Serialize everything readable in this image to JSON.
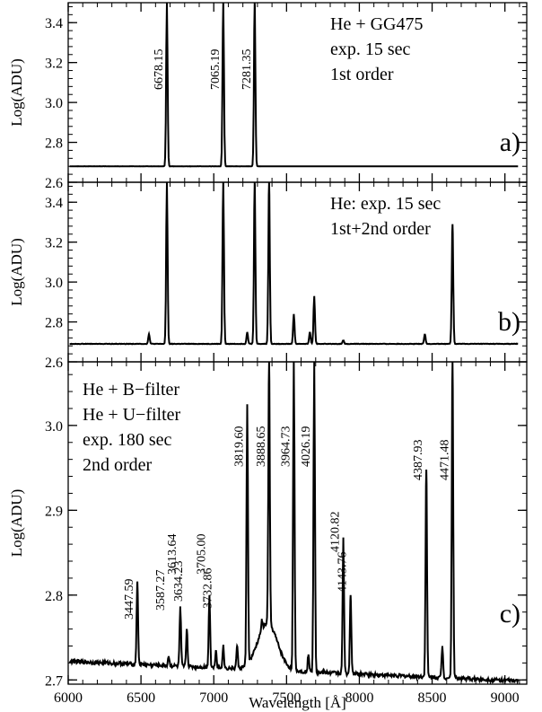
{
  "chart_data": [
    {
      "panel": "a)",
      "type": "line",
      "annotation_lines": [
        "He + GG475",
        "exp. 15 sec",
        "1st order"
      ],
      "ylabel": "Log(ADU)",
      "xlim": [
        6000,
        9150
      ],
      "ylim": [
        2.6,
        3.5
      ],
      "yticks": [
        "2.6",
        "2.8",
        "3.0",
        "3.2",
        "3.4"
      ],
      "baseline": 2.68,
      "peaks": [
        {
          "x": 6678,
          "y": 3.5,
          "label": "6678.15"
        },
        {
          "x": 7065,
          "y": 3.5,
          "label": "7065.19"
        },
        {
          "x": 7281,
          "y": 3.5,
          "label": "7281.35"
        }
      ]
    },
    {
      "panel": "b)",
      "type": "line",
      "annotation_lines": [
        "He:  exp. 15 sec",
        "1st+2nd order"
      ],
      "ylabel": "Log(ADU)",
      "xlim": [
        6000,
        9150
      ],
      "ylim": [
        2.6,
        3.5
      ],
      "yticks": [
        "2.6",
        "2.8",
        "3.0",
        "3.2",
        "3.4"
      ],
      "baseline": 2.69,
      "peaks": [
        {
          "x": 6555,
          "y": 2.74
        },
        {
          "x": 6678,
          "y": 3.5
        },
        {
          "x": 7065,
          "y": 3.5
        },
        {
          "x": 7230,
          "y": 2.75
        },
        {
          "x": 7281,
          "y": 3.5
        },
        {
          "x": 7380,
          "y": 3.5
        },
        {
          "x": 7550,
          "y": 2.84
        },
        {
          "x": 7660,
          "y": 2.75
        },
        {
          "x": 7690,
          "y": 2.93
        },
        {
          "x": 7890,
          "y": 2.71
        },
        {
          "x": 8450,
          "y": 2.74
        },
        {
          "x": 8640,
          "y": 3.29
        }
      ]
    },
    {
      "panel": "c)",
      "type": "line",
      "annotation_lines": [
        "He + B−filter",
        "He + U−filter",
        "exp. 180 sec",
        "2nd order"
      ],
      "ylabel": "Log(ADU)",
      "xlabel": "Wavelength [Å]",
      "xlim": [
        6000,
        9150
      ],
      "ylim": [
        2.695,
        3.075
      ],
      "yticks": [
        "2.7",
        "2.8",
        "2.9",
        "3.0"
      ],
      "xticks": [
        "6000",
        "6500",
        "7000",
        "7500",
        "8000",
        "8500",
        "9000"
      ],
      "peaks": [
        {
          "x": 6475,
          "y": 2.816,
          "label": "3447.59"
        },
        {
          "x": 6690,
          "y": 2.728,
          "label": "3587.27"
        },
        {
          "x": 6770,
          "y": 2.785,
          "label": "3613.64"
        },
        {
          "x": 6815,
          "y": 2.76,
          "label": "3634.23"
        },
        {
          "x": 6970,
          "y": 2.8,
          "label": "3705.00"
        },
        {
          "x": 7015,
          "y": 2.735,
          "label": "3732.86"
        },
        {
          "x": 7065,
          "y": 2.74
        },
        {
          "x": 7160,
          "y": 2.74
        },
        {
          "x": 7230,
          "y": 3.025,
          "label": "3819.60"
        },
        {
          "x": 7330,
          "y": 2.77
        },
        {
          "x": 7380,
          "y": 3.075,
          "label": "3888.65"
        },
        {
          "x": 7550,
          "y": 3.075,
          "label": "3964.73"
        },
        {
          "x": 7650,
          "y": 2.73
        },
        {
          "x": 7690,
          "y": 3.075,
          "label": "4026.19"
        },
        {
          "x": 7890,
          "y": 2.866,
          "label": "4120.82"
        },
        {
          "x": 7940,
          "y": 2.8,
          "label": "4143.76"
        },
        {
          "x": 8460,
          "y": 2.948,
          "label": "4387.93"
        },
        {
          "x": 8570,
          "y": 2.74
        },
        {
          "x": 8640,
          "y": 3.075,
          "label": "4471.48"
        }
      ]
    }
  ]
}
